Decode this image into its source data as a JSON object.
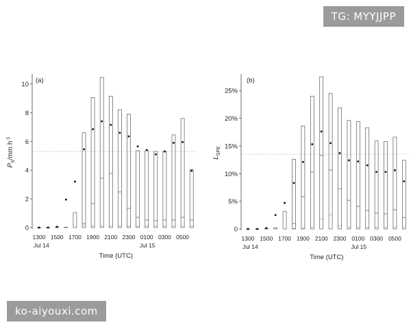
{
  "watermarks": {
    "top": "TG: MYYJJPP",
    "bottom": "ko-aiyouxi.com"
  },
  "chart_data": [
    {
      "type": "box",
      "panel_label": "(a)",
      "ylabel": "P",
      "ylabel_sub": "S",
      "ylabel_suffix": "/mm h",
      "ylabel_exp": "-1",
      "xlabel": "Time (UTC)",
      "x_ticks": [
        "1300",
        "1500",
        "1700",
        "1900",
        "2100",
        "2300",
        "0100",
        "0300",
        "0500"
      ],
      "x_day_labels": [
        {
          "at": "1300",
          "text": "Jul 14"
        },
        {
          "at": "0100",
          "text": "Jul 15"
        }
      ],
      "y_ticks": [
        "0",
        "2",
        "4",
        "6",
        "8",
        "10"
      ],
      "ylim": [
        0,
        10.5
      ],
      "ref_line_y": 5.3,
      "boxes": [
        {
          "t": "1300",
          "low": 0,
          "q1": 0,
          "median": 0,
          "q3": 0,
          "high": 0,
          "mean": 0
        },
        {
          "t": "1400",
          "low": 0,
          "q1": 0,
          "median": 0,
          "q3": 0,
          "high": 0,
          "mean": 0
        },
        {
          "t": "1500",
          "low": 0,
          "q1": 0,
          "median": 0,
          "q3": 0,
          "high": 0.05,
          "mean": 0.05
        },
        {
          "t": "1600",
          "low": 0,
          "q1": 0,
          "median": 0,
          "q3": 0,
          "high": 0.02,
          "mean": 1.95
        },
        {
          "t": "1700",
          "low": 0,
          "q1": 0,
          "median": 0,
          "q3": 0,
          "high": 1.05,
          "mean": 3.2
        },
        {
          "t": "1800",
          "low": 0,
          "q1": 0.15,
          "median": 0.25,
          "q3": 0.3,
          "high": 6.6,
          "mean": 5.45
        },
        {
          "t": "1900",
          "low": 0,
          "q1": 0.1,
          "median": 1.65,
          "q3": 1.7,
          "high": 9.05,
          "mean": 6.85
        },
        {
          "t": "2000",
          "low": 0,
          "q1": 0.1,
          "median": 3.4,
          "q3": 3.45,
          "high": 10.45,
          "mean": 7.4
        },
        {
          "t": "2100",
          "low": 0,
          "q1": 0.1,
          "median": 3.75,
          "q3": 3.8,
          "high": 9.15,
          "mean": 7.15
        },
        {
          "t": "2200",
          "low": 0,
          "q1": 0.1,
          "median": 2.45,
          "q3": 2.5,
          "high": 8.2,
          "mean": 6.6
        },
        {
          "t": "2300",
          "low": 0,
          "q1": 0.1,
          "median": 1.3,
          "q3": 1.35,
          "high": 7.9,
          "mean": 6.35
        },
        {
          "t": "0000",
          "low": 0,
          "q1": 0.1,
          "median": 0.7,
          "q3": 0.75,
          "high": 5.35,
          "mean": 5.65
        },
        {
          "t": "0100",
          "low": 0,
          "q1": 0.1,
          "median": 0.5,
          "q3": 0.55,
          "high": 5.35,
          "mean": 5.4
        },
        {
          "t": "0200",
          "low": 0,
          "q1": 0.1,
          "median": 0.45,
          "q3": 0.5,
          "high": 5.3,
          "mean": 5.1
        },
        {
          "t": "0300",
          "low": 0,
          "q1": 0.1,
          "median": 0.5,
          "q3": 0.55,
          "high": 5.3,
          "mean": 5.3
        },
        {
          "t": "0400",
          "low": 0,
          "q1": 0.1,
          "median": 0.5,
          "q3": 0.55,
          "high": 6.45,
          "mean": 5.9
        },
        {
          "t": "0500",
          "low": 0,
          "q1": 0.1,
          "median": 0.7,
          "q3": 0.75,
          "high": 7.6,
          "mean": 5.95
        },
        {
          "t": "0600",
          "low": 0,
          "q1": 0.1,
          "median": 0.5,
          "q3": 0.55,
          "high": 4.05,
          "mean": 3.95
        }
      ]
    },
    {
      "type": "box",
      "panel_label": "(b)",
      "ylabel": "L",
      "ylabel_sub": "SPE",
      "ylabel_suffix": "",
      "ylabel_exp": "",
      "xlabel": "Time (UTC)",
      "x_ticks": [
        "1300",
        "1500",
        "1700",
        "1900",
        "2100",
        "2300",
        "0100",
        "0300",
        "0500"
      ],
      "x_day_labels": [
        {
          "at": "1300",
          "text": "Jul 14"
        },
        {
          "at": "0100",
          "text": "Jul 15"
        }
      ],
      "y_ticks": [
        "0",
        "5%",
        "10%",
        "15%",
        "20%",
        "25%"
      ],
      "ylim": [
        0,
        27.5
      ],
      "ref_line_y": 13.5,
      "boxes": [
        {
          "t": "1300",
          "low": 0,
          "q1": 0,
          "median": 0,
          "q3": 0,
          "high": 0,
          "mean": 0
        },
        {
          "t": "1400",
          "low": 0,
          "q1": 0,
          "median": 0,
          "q3": 0,
          "high": 0,
          "mean": 0
        },
        {
          "t": "1500",
          "low": 0,
          "q1": 0,
          "median": 0,
          "q3": 0,
          "high": 0.1,
          "mean": 0.15
        },
        {
          "t": "1600",
          "low": 0,
          "q1": 0,
          "median": 0,
          "q3": 0,
          "high": 0.2,
          "mean": 2.5
        },
        {
          "t": "1700",
          "low": 0,
          "q1": 0,
          "median": 0,
          "q3": 0,
          "high": 3.2,
          "mean": 4.7
        },
        {
          "t": "1800",
          "low": 0,
          "q1": 0.1,
          "median": 0.9,
          "q3": 1.0,
          "high": 12.6,
          "mean": 8.3
        },
        {
          "t": "1900",
          "low": 0,
          "q1": 0.2,
          "median": 5.8,
          "q3": 5.9,
          "high": 18.6,
          "mean": 12.1
        },
        {
          "t": "2000",
          "low": 0,
          "q1": 0.3,
          "median": 10.2,
          "q3": 10.3,
          "high": 24.0,
          "mean": 15.3
        },
        {
          "t": "2100",
          "low": 0,
          "q1": 1.8,
          "median": 13.2,
          "q3": 13.3,
          "high": 27.5,
          "mean": 17.6
        },
        {
          "t": "2200",
          "low": 0,
          "q1": 2.5,
          "median": 10.6,
          "q3": 10.7,
          "high": 24.5,
          "mean": 15.5
        },
        {
          "t": "2300",
          "low": 0,
          "q1": 0.5,
          "median": 7.2,
          "q3": 7.3,
          "high": 21.9,
          "mean": 13.7
        },
        {
          "t": "0000",
          "low": 0,
          "q1": 0.3,
          "median": 5.1,
          "q3": 5.2,
          "high": 19.6,
          "mean": 12.4
        },
        {
          "t": "0100",
          "low": 0,
          "q1": 0.3,
          "median": 4.0,
          "q3": 4.1,
          "high": 19.4,
          "mean": 12.2
        },
        {
          "t": "0200",
          "low": 0,
          "q1": 0.3,
          "median": 3.3,
          "q3": 3.4,
          "high": 18.3,
          "mean": 11.5
        },
        {
          "t": "0300",
          "low": 0,
          "q1": 0.3,
          "median": 2.8,
          "q3": 2.9,
          "high": 15.9,
          "mean": 10.3
        },
        {
          "t": "0400",
          "low": 0,
          "q1": 0.3,
          "median": 2.7,
          "q3": 2.8,
          "high": 15.8,
          "mean": 10.3
        },
        {
          "t": "0500",
          "low": 0,
          "q1": 0.3,
          "median": 3.4,
          "q3": 3.5,
          "high": 16.6,
          "mean": 10.6
        },
        {
          "t": "0600",
          "low": 0,
          "q1": 0.3,
          "median": 2.0,
          "q3": 2.1,
          "high": 12.4,
          "mean": 8.6
        }
      ]
    }
  ]
}
